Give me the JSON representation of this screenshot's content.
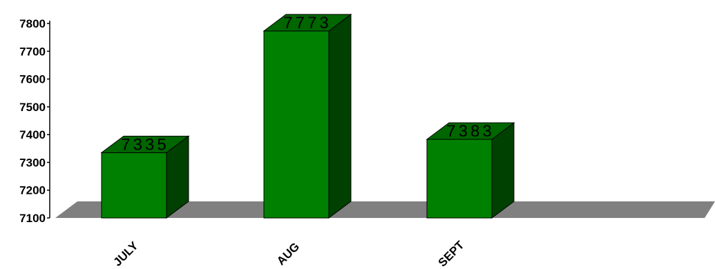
{
  "chart_data": {
    "type": "bar",
    "title": "",
    "xlabel": "",
    "ylabel": "",
    "categories": [
      "JULY",
      "AUG",
      "SEPT"
    ],
    "values": [
      7335,
      7773,
      7383
    ],
    "data_labels": [
      "7335",
      "7773",
      "7383"
    ],
    "ylim": [
      7100,
      7800
    ],
    "yticks": [
      7100,
      7200,
      7300,
      7400,
      7500,
      7600,
      7700,
      7800
    ],
    "ytick_labels": [
      "7100",
      "7200",
      "7300",
      "7400",
      "7500",
      "7600",
      "7700",
      "7800"
    ],
    "grid": false,
    "legend": "none",
    "style": "3d",
    "colors": {
      "bar_front": "#008000",
      "bar_side": "#004000",
      "bar_top": "#006600",
      "floor": "#808080",
      "outline": "#000000"
    }
  }
}
